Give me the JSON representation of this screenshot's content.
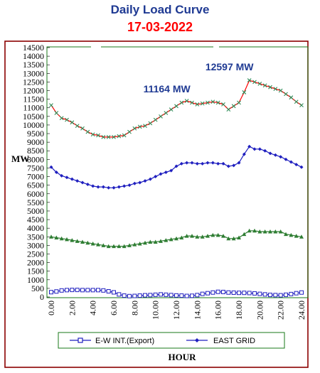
{
  "chart_data": {
    "type": "line",
    "title": "Daily Load Curve",
    "subtitle": "17-03-2022",
    "xlabel": "HOUR",
    "ylabel": "MW",
    "ylim": [
      0,
      14500
    ],
    "ytick_step": 500,
    "xlim": [
      0,
      24
    ],
    "x_tick_labels": [
      "0.00",
      "2.00",
      "4.00",
      "6.00",
      "8.00",
      "10.00",
      "12.00",
      "14.00",
      "16.00",
      "18.00",
      "20.00",
      "22.00",
      "24.00"
    ],
    "legend_position": "bottom",
    "annotations": [
      {
        "text": "11164 MW",
        "x": 13,
        "y": 11164
      },
      {
        "text": "12597 MW",
        "x": 19,
        "y": 12597
      }
    ],
    "series": [
      {
        "color": "#ff0000",
        "marker": "x",
        "marker_color": "#2e8b57",
        "x": [
          0,
          0.5,
          1,
          1.5,
          2,
          2.5,
          3,
          3.5,
          4,
          4.5,
          5,
          5.5,
          6,
          6.5,
          7,
          7.5,
          8,
          8.5,
          9,
          9.5,
          10,
          10.5,
          11,
          11.5,
          12,
          12.5,
          13,
          13.5,
          14,
          14.5,
          15,
          15.5,
          16,
          16.5,
          17,
          17.5,
          18,
          18.5,
          19,
          19.5,
          20,
          20.5,
          21,
          21.5,
          22,
          22.5,
          23,
          23.5,
          24
        ],
        "values": [
          11150,
          10700,
          10400,
          10300,
          10150,
          9950,
          9800,
          9600,
          9450,
          9400,
          9300,
          9300,
          9300,
          9350,
          9400,
          9600,
          9800,
          9900,
          9950,
          10100,
          10300,
          10500,
          10700,
          10900,
          11100,
          11300,
          11400,
          11300,
          11200,
          11250,
          11300,
          11350,
          11300,
          11200,
          10900,
          11100,
          11300,
          11900,
          12597,
          12500,
          12400,
          12300,
          12200,
          12100,
          12000,
          11800,
          11600,
          11350,
          11150
        ]
      },
      {
        "name": "EAST GRID",
        "color": "#1f1fbf",
        "marker": "diamond",
        "x": [
          0,
          0.5,
          1,
          1.5,
          2,
          2.5,
          3,
          3.5,
          4,
          4.5,
          5,
          5.5,
          6,
          6.5,
          7,
          7.5,
          8,
          8.5,
          9,
          9.5,
          10,
          10.5,
          11,
          11.5,
          12,
          12.5,
          13,
          13.5,
          14,
          14.5,
          15,
          15.5,
          16,
          16.5,
          17,
          17.5,
          18,
          18.5,
          19,
          19.5,
          20,
          20.5,
          21,
          21.5,
          22,
          22.5,
          23,
          23.5,
          24
        ],
        "values": [
          7550,
          7250,
          7050,
          6950,
          6850,
          6750,
          6650,
          6550,
          6450,
          6400,
          6400,
          6350,
          6350,
          6400,
          6450,
          6500,
          6600,
          6650,
          6750,
          6850,
          7000,
          7150,
          7250,
          7350,
          7600,
          7750,
          7800,
          7800,
          7750,
          7750,
          7800,
          7800,
          7750,
          7750,
          7600,
          7650,
          7800,
          8300,
          8750,
          8600,
          8600,
          8500,
          8350,
          8250,
          8150,
          8000,
          7850,
          7700,
          7550
        ]
      },
      {
        "color": "#2e7d32",
        "marker": "triangle",
        "x": [
          0,
          0.5,
          1,
          1.5,
          2,
          2.5,
          3,
          3.5,
          4,
          4.5,
          5,
          5.5,
          6,
          6.5,
          7,
          7.5,
          8,
          8.5,
          9,
          9.5,
          10,
          10.5,
          11,
          11.5,
          12,
          12.5,
          13,
          13.5,
          14,
          14.5,
          15,
          15.5,
          16,
          16.5,
          17,
          17.5,
          18,
          18.5,
          19,
          19.5,
          20,
          20.5,
          21,
          21.5,
          22,
          22.5,
          23,
          23.5,
          24
        ],
        "values": [
          3500,
          3450,
          3400,
          3350,
          3300,
          3250,
          3200,
          3150,
          3100,
          3050,
          3000,
          2950,
          2950,
          2950,
          2950,
          3000,
          3050,
          3100,
          3150,
          3200,
          3200,
          3250,
          3300,
          3350,
          3400,
          3450,
          3550,
          3550,
          3500,
          3500,
          3550,
          3600,
          3600,
          3550,
          3400,
          3400,
          3450,
          3650,
          3850,
          3850,
          3800,
          3800,
          3800,
          3800,
          3800,
          3650,
          3600,
          3550,
          3500
        ]
      },
      {
        "name": "E-W INT.(Export)",
        "color": "#1f1fbf",
        "marker": "square",
        "x": [
          0,
          0.5,
          1,
          1.5,
          2,
          2.5,
          3,
          3.5,
          4,
          4.5,
          5,
          5.5,
          6,
          6.5,
          7,
          7.5,
          8,
          8.5,
          9,
          9.5,
          10,
          10.5,
          11,
          11.5,
          12,
          12.5,
          13,
          13.5,
          14,
          14.5,
          15,
          15.5,
          16,
          16.5,
          17,
          17.5,
          18,
          18.5,
          19,
          19.5,
          20,
          20.5,
          21,
          21.5,
          22,
          22.5,
          23,
          23.5,
          24
        ],
        "values": [
          280,
          320,
          380,
          400,
          410,
          410,
          400,
          400,
          400,
          400,
          380,
          330,
          270,
          150,
          80,
          50,
          60,
          80,
          100,
          110,
          130,
          150,
          130,
          110,
          90,
          80,
          60,
          70,
          110,
          180,
          220,
          260,
          300,
          290,
          260,
          250,
          240,
          240,
          230,
          210,
          180,
          150,
          120,
          110,
          100,
          130,
          170,
          220,
          260
        ]
      }
    ]
  }
}
